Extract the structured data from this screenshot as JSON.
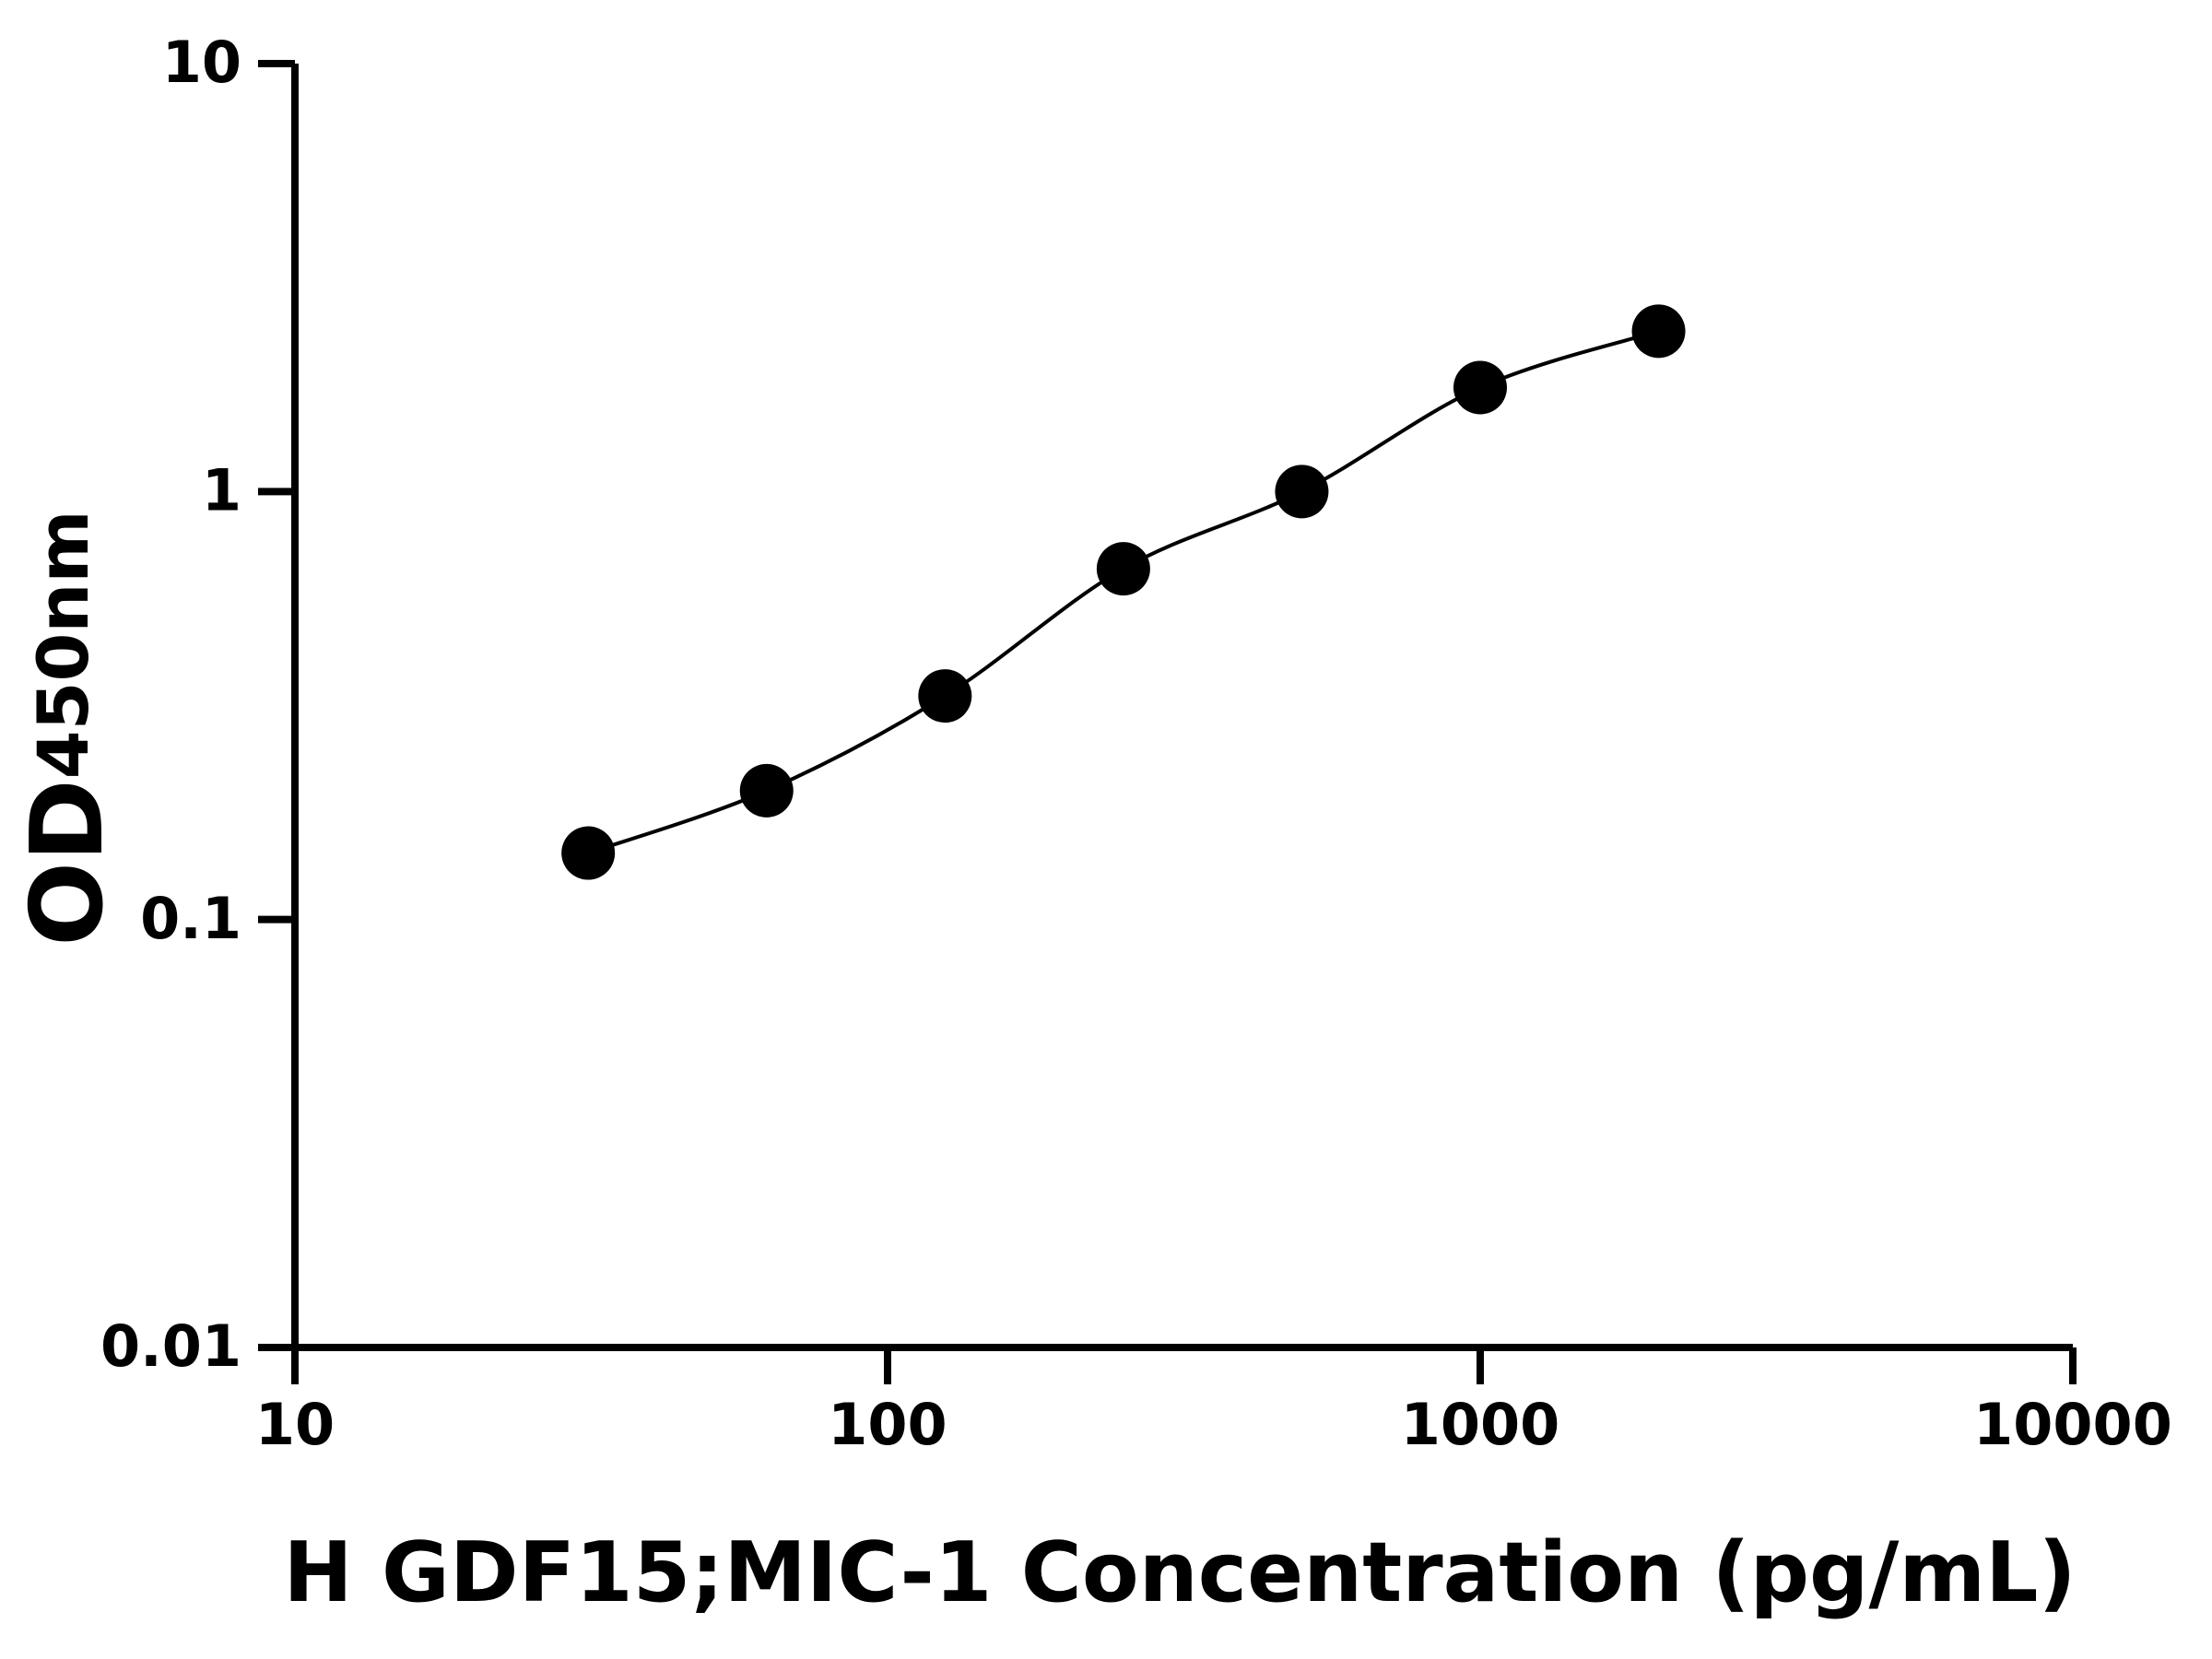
{
  "chart_data": {
    "type": "scatter",
    "x_label": "H GDF15;MIC-1 Concentration (pg/mL)",
    "y_label": "OD",
    "y_label_subscript": "450nm",
    "x": [
      31.25,
      62.5,
      125,
      250,
      500,
      1000,
      2000
    ],
    "values": [
      0.143,
      0.2,
      0.333,
      0.66,
      1.0,
      1.75,
      2.37
    ],
    "color": "#000000",
    "fit_line": true,
    "x_log": true,
    "y_log": true,
    "xlim": [
      10,
      10000
    ],
    "xticks": [
      10,
      100,
      1000,
      10000
    ],
    "ylim": [
      0.01,
      10
    ],
    "yticks": [
      0.01,
      0.1,
      1,
      10
    ]
  }
}
